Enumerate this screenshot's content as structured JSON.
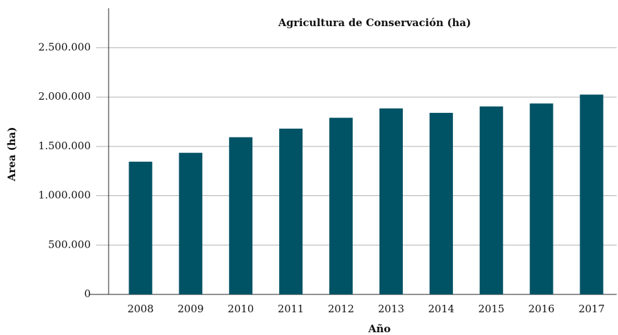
{
  "chart_data": {
    "type": "bar",
    "title": "Agricultura de Conservación (ha)",
    "x_label": "Año",
    "y_label": "Area (ha)",
    "categories": [
      "2008",
      "2009",
      "2010",
      "2011",
      "2012",
      "2013",
      "2014",
      "2015",
      "2016",
      "2017"
    ],
    "values": [
      1345000,
      1435000,
      1593000,
      1680000,
      1790000,
      1885000,
      1840000,
      1905000,
      1935000,
      2025000
    ],
    "color": "#005265",
    "ylim": [
      0,
      2900000
    ],
    "yticks": [
      0,
      {
        "value": 500000,
        "label": "500.000"
      },
      {
        "value": 1000000,
        "label": "1.000.000"
      },
      {
        "value": 1500000,
        "label": "1.500.000"
      },
      {
        "value": 2000000,
        "label": "2.000.000"
      },
      {
        "value": 2500000,
        "label": "2.500.000"
      }
    ],
    "grid": true
  }
}
